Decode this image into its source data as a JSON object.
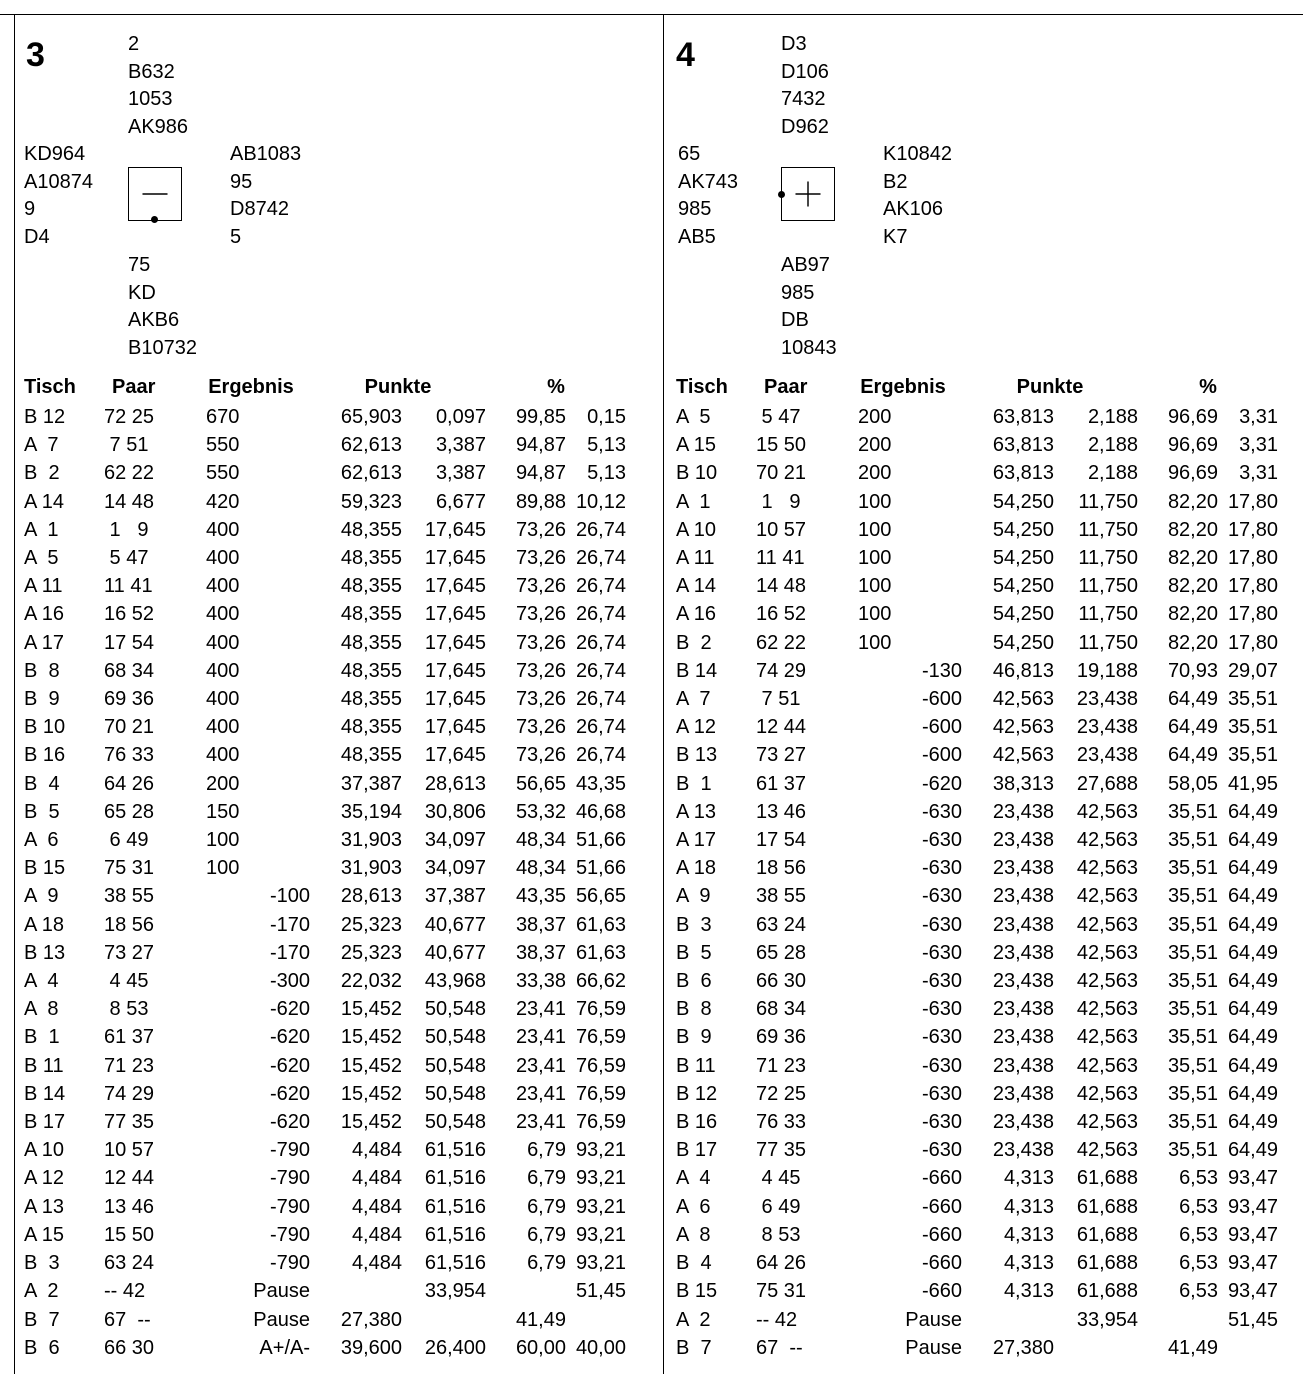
{
  "boards": [
    {
      "number": "3",
      "north": [
        "2",
        "B632",
        "1053",
        "AK986"
      ],
      "west": [
        "KD964",
        "A10874",
        "9",
        "D4"
      ],
      "east": [
        "AB1083",
        "95",
        "D8742",
        "5"
      ],
      "south": [
        "75",
        "KD",
        "AKB6",
        "B10732"
      ],
      "vulnerability": "—",
      "dealer_marker": "south",
      "headers": [
        "Tisch",
        "Paar",
        "Ergebnis",
        "Punkte",
        "%"
      ],
      "rows": [
        [
          "B 12",
          "72 25",
          "670",
          "65,903",
          "0,097",
          "99,85",
          "0,15"
        ],
        [
          "A  7",
          " 7 51",
          "550",
          "62,613",
          "3,387",
          "94,87",
          "5,13"
        ],
        [
          "B  2",
          "62 22",
          "550",
          "62,613",
          "3,387",
          "94,87",
          "5,13"
        ],
        [
          "A 14",
          "14 48",
          "420",
          "59,323",
          "6,677",
          "89,88",
          "10,12"
        ],
        [
          "A  1",
          " 1   9",
          "400",
          "48,355",
          "17,645",
          "73,26",
          "26,74"
        ],
        [
          "A  5",
          " 5 47",
          "400",
          "48,355",
          "17,645",
          "73,26",
          "26,74"
        ],
        [
          "A 11",
          "11 41",
          "400",
          "48,355",
          "17,645",
          "73,26",
          "26,74"
        ],
        [
          "A 16",
          "16 52",
          "400",
          "48,355",
          "17,645",
          "73,26",
          "26,74"
        ],
        [
          "A 17",
          "17 54",
          "400",
          "48,355",
          "17,645",
          "73,26",
          "26,74"
        ],
        [
          "B  8",
          "68 34",
          "400",
          "48,355",
          "17,645",
          "73,26",
          "26,74"
        ],
        [
          "B  9",
          "69 36",
          "400",
          "48,355",
          "17,645",
          "73,26",
          "26,74"
        ],
        [
          "B 10",
          "70 21",
          "400",
          "48,355",
          "17,645",
          "73,26",
          "26,74"
        ],
        [
          "B 16",
          "76 33",
          "400",
          "48,355",
          "17,645",
          "73,26",
          "26,74"
        ],
        [
          "B  4",
          "64 26",
          "200",
          "37,387",
          "28,613",
          "56,65",
          "43,35"
        ],
        [
          "B  5",
          "65 28",
          "150",
          "35,194",
          "30,806",
          "53,32",
          "46,68"
        ],
        [
          "A  6",
          " 6 49",
          "100",
          "31,903",
          "34,097",
          "48,34",
          "51,66"
        ],
        [
          "B 15",
          "75 31",
          "100",
          "31,903",
          "34,097",
          "48,34",
          "51,66"
        ],
        [
          "A  9",
          "38 55",
          "-100",
          "28,613",
          "37,387",
          "43,35",
          "56,65"
        ],
        [
          "A 18",
          "18 56",
          "-170",
          "25,323",
          "40,677",
          "38,37",
          "61,63"
        ],
        [
          "B 13",
          "73 27",
          "-170",
          "25,323",
          "40,677",
          "38,37",
          "61,63"
        ],
        [
          "A  4",
          " 4 45",
          "-300",
          "22,032",
          "43,968",
          "33,38",
          "66,62"
        ],
        [
          "A  8",
          " 8 53",
          "-620",
          "15,452",
          "50,548",
          "23,41",
          "76,59"
        ],
        [
          "B  1",
          "61 37",
          "-620",
          "15,452",
          "50,548",
          "23,41",
          "76,59"
        ],
        [
          "B 11",
          "71 23",
          "-620",
          "15,452",
          "50,548",
          "23,41",
          "76,59"
        ],
        [
          "B 14",
          "74 29",
          "-620",
          "15,452",
          "50,548",
          "23,41",
          "76,59"
        ],
        [
          "B 17",
          "77 35",
          "-620",
          "15,452",
          "50,548",
          "23,41",
          "76,59"
        ],
        [
          "A 10",
          "10 57",
          "-790",
          "4,484",
          "61,516",
          "6,79",
          "93,21"
        ],
        [
          "A 12",
          "12 44",
          "-790",
          "4,484",
          "61,516",
          "6,79",
          "93,21"
        ],
        [
          "A 13",
          "13 46",
          "-790",
          "4,484",
          "61,516",
          "6,79",
          "93,21"
        ],
        [
          "A 15",
          "15 50",
          "-790",
          "4,484",
          "61,516",
          "6,79",
          "93,21"
        ],
        [
          "B  3",
          "63 24",
          "-790",
          "4,484",
          "61,516",
          "6,79",
          "93,21"
        ],
        [
          "A  2",
          "-- 42",
          "Pause",
          "",
          "33,954",
          "",
          "51,45"
        ],
        [
          "B  7",
          "67  --",
          "Pause",
          "27,380",
          "",
          "41,49",
          ""
        ],
        [
          "B  6",
          "66 30",
          "A+/A-",
          "39,600",
          "26,400",
          "60,00",
          "40,00"
        ]
      ]
    },
    {
      "number": "4",
      "north": [
        "D3",
        "D106",
        "7432",
        "D962"
      ],
      "west": [
        "65",
        "AK743",
        "985",
        "AB5"
      ],
      "east": [
        "K10842",
        "B2",
        "AK106",
        "K7"
      ],
      "south": [
        "AB97",
        "985",
        "DB",
        "10843"
      ],
      "vulnerability": "+",
      "dealer_marker": "west",
      "headers": [
        "Tisch",
        "Paar",
        "Ergebnis",
        "Punkte",
        "%"
      ],
      "rows": [
        [
          "A  5",
          " 5 47",
          "200",
          "63,813",
          "2,188",
          "96,69",
          "3,31"
        ],
        [
          "A 15",
          "15 50",
          "200",
          "63,813",
          "2,188",
          "96,69",
          "3,31"
        ],
        [
          "B 10",
          "70 21",
          "200",
          "63,813",
          "2,188",
          "96,69",
          "3,31"
        ],
        [
          "A  1",
          " 1   9",
          "100",
          "54,250",
          "11,750",
          "82,20",
          "17,80"
        ],
        [
          "A 10",
          "10 57",
          "100",
          "54,250",
          "11,750",
          "82,20",
          "17,80"
        ],
        [
          "A 11",
          "11 41",
          "100",
          "54,250",
          "11,750",
          "82,20",
          "17,80"
        ],
        [
          "A 14",
          "14 48",
          "100",
          "54,250",
          "11,750",
          "82,20",
          "17,80"
        ],
        [
          "A 16",
          "16 52",
          "100",
          "54,250",
          "11,750",
          "82,20",
          "17,80"
        ],
        [
          "B  2",
          "62 22",
          "100",
          "54,250",
          "11,750",
          "82,20",
          "17,80"
        ],
        [
          "B 14",
          "74 29",
          "-130",
          "46,813",
          "19,188",
          "70,93",
          "29,07"
        ],
        [
          "A  7",
          " 7 51",
          "-600",
          "42,563",
          "23,438",
          "64,49",
          "35,51"
        ],
        [
          "A 12",
          "12 44",
          "-600",
          "42,563",
          "23,438",
          "64,49",
          "35,51"
        ],
        [
          "B 13",
          "73 27",
          "-600",
          "42,563",
          "23,438",
          "64,49",
          "35,51"
        ],
        [
          "B  1",
          "61 37",
          "-620",
          "38,313",
          "27,688",
          "58,05",
          "41,95"
        ],
        [
          "A 13",
          "13 46",
          "-630",
          "23,438",
          "42,563",
          "35,51",
          "64,49"
        ],
        [
          "A 17",
          "17 54",
          "-630",
          "23,438",
          "42,563",
          "35,51",
          "64,49"
        ],
        [
          "A 18",
          "18 56",
          "-630",
          "23,438",
          "42,563",
          "35,51",
          "64,49"
        ],
        [
          "A  9",
          "38 55",
          "-630",
          "23,438",
          "42,563",
          "35,51",
          "64,49"
        ],
        [
          "B  3",
          "63 24",
          "-630",
          "23,438",
          "42,563",
          "35,51",
          "64,49"
        ],
        [
          "B  5",
          "65 28",
          "-630",
          "23,438",
          "42,563",
          "35,51",
          "64,49"
        ],
        [
          "B  6",
          "66 30",
          "-630",
          "23,438",
          "42,563",
          "35,51",
          "64,49"
        ],
        [
          "B  8",
          "68 34",
          "-630",
          "23,438",
          "42,563",
          "35,51",
          "64,49"
        ],
        [
          "B  9",
          "69 36",
          "-630",
          "23,438",
          "42,563",
          "35,51",
          "64,49"
        ],
        [
          "B 11",
          "71 23",
          "-630",
          "23,438",
          "42,563",
          "35,51",
          "64,49"
        ],
        [
          "B 12",
          "72 25",
          "-630",
          "23,438",
          "42,563",
          "35,51",
          "64,49"
        ],
        [
          "B 16",
          "76 33",
          "-630",
          "23,438",
          "42,563",
          "35,51",
          "64,49"
        ],
        [
          "B 17",
          "77 35",
          "-630",
          "23,438",
          "42,563",
          "35,51",
          "64,49"
        ],
        [
          "A  4",
          " 4 45",
          "-660",
          "4,313",
          "61,688",
          "6,53",
          "93,47"
        ],
        [
          "A  6",
          " 6 49",
          "-660",
          "4,313",
          "61,688",
          "6,53",
          "93,47"
        ],
        [
          "A  8",
          " 8 53",
          "-660",
          "4,313",
          "61,688",
          "6,53",
          "93,47"
        ],
        [
          "B  4",
          "64 26",
          "-660",
          "4,313",
          "61,688",
          "6,53",
          "93,47"
        ],
        [
          "B 15",
          "75 31",
          "-660",
          "4,313",
          "61,688",
          "6,53",
          "93,47"
        ],
        [
          "A  2",
          "-- 42",
          "Pause",
          "",
          "33,954",
          "",
          "51,45"
        ],
        [
          "B  7",
          "67  --",
          "Pause",
          "27,380",
          "",
          "41,49",
          ""
        ]
      ]
    }
  ]
}
